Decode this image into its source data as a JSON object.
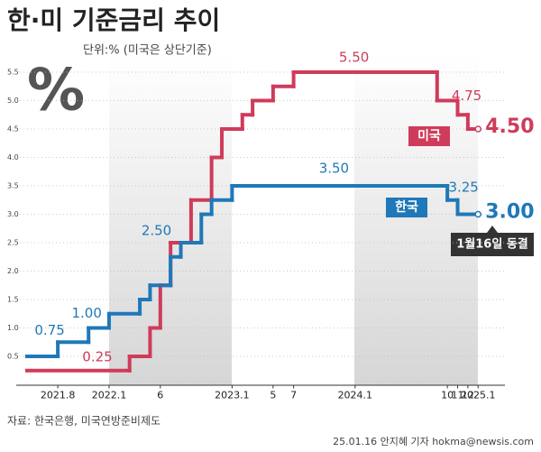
{
  "chart_data": {
    "type": "step-line",
    "title": "한·미 기준금리 추이",
    "subtitle": "단위:% (미국은 상단기준)",
    "badge": "%",
    "source": "자료: 한국은행, 미국연방준비제도",
    "credit": "25.01.16 안지혜 기자 hokma@newsis.com",
    "annotation": "1월16일 동결",
    "xlim": [
      "2021-05",
      "2025-03"
    ],
    "xticks": [
      {
        "value": "2021-08",
        "label": "2021.8"
      },
      {
        "value": "2022-01",
        "label": "2022.1"
      },
      {
        "value": "2022-06",
        "label": "6"
      },
      {
        "value": "2023-01",
        "label": "2023.1"
      },
      {
        "value": "2023-05",
        "label": "5"
      },
      {
        "value": "2023-07",
        "label": "7"
      },
      {
        "value": "2024-01",
        "label": "2024.1"
      },
      {
        "value": "2024-10",
        "label": "10"
      },
      {
        "value": "2024-11",
        "label": "11"
      },
      {
        "value": "2024-12",
        "label": "12"
      },
      {
        "value": "2025-01",
        "label": "2025.1"
      }
    ],
    "ylim": [
      0,
      6
    ],
    "yticks": [
      0.5,
      {
        "value": 1,
        "label": "1.0"
      },
      1.5,
      {
        "value": 2,
        "label": "2.0"
      },
      2.5,
      {
        "value": 3,
        "label": "3.0"
      },
      3.5,
      {
        "value": 4,
        "label": "4.0"
      },
      4.5,
      {
        "value": 5,
        "label": "5.0"
      },
      5.5
    ],
    "grid": true,
    "series": [
      {
        "name": "미국",
        "color": "#cf3b5b",
        "x": [
          "2021-05",
          "2022-03",
          "2022-05",
          "2022-06",
          "2022-07",
          "2022-09",
          "2022-11",
          "2022-12",
          "2023-02",
          "2023-03",
          "2023-05",
          "2023-07",
          "2024-09",
          "2024-11",
          "2024-12",
          "2025-01"
        ],
        "values": [
          0.25,
          0.5,
          1.0,
          1.75,
          2.5,
          3.25,
          4.0,
          4.5,
          4.75,
          5.0,
          5.25,
          5.5,
          5.0,
          4.75,
          4.5,
          4.5
        ],
        "value_labels": [
          "0.25",
          null,
          null,
          null,
          null,
          null,
          null,
          null,
          null,
          null,
          null,
          "5.50",
          null,
          "4.75",
          null,
          "4.50"
        ]
      },
      {
        "name": "한국",
        "color": "#1f78b8",
        "x": [
          "2021-05",
          "2021-08",
          "2021-11",
          "2022-01",
          "2022-04",
          "2022-05",
          "2022-07",
          "2022-08",
          "2022-10",
          "2022-11",
          "2023-01",
          "2024-10",
          "2024-11",
          "2025-01"
        ],
        "values": [
          0.5,
          0.75,
          1.0,
          1.25,
          1.5,
          1.75,
          2.25,
          2.5,
          3.0,
          3.25,
          3.5,
          3.25,
          3.0,
          3.0
        ],
        "value_labels": [
          null,
          "0.75",
          "1.00",
          null,
          null,
          null,
          null,
          "2.50",
          null,
          null,
          "3.50",
          "3.25",
          null,
          "3.00"
        ]
      }
    ]
  }
}
